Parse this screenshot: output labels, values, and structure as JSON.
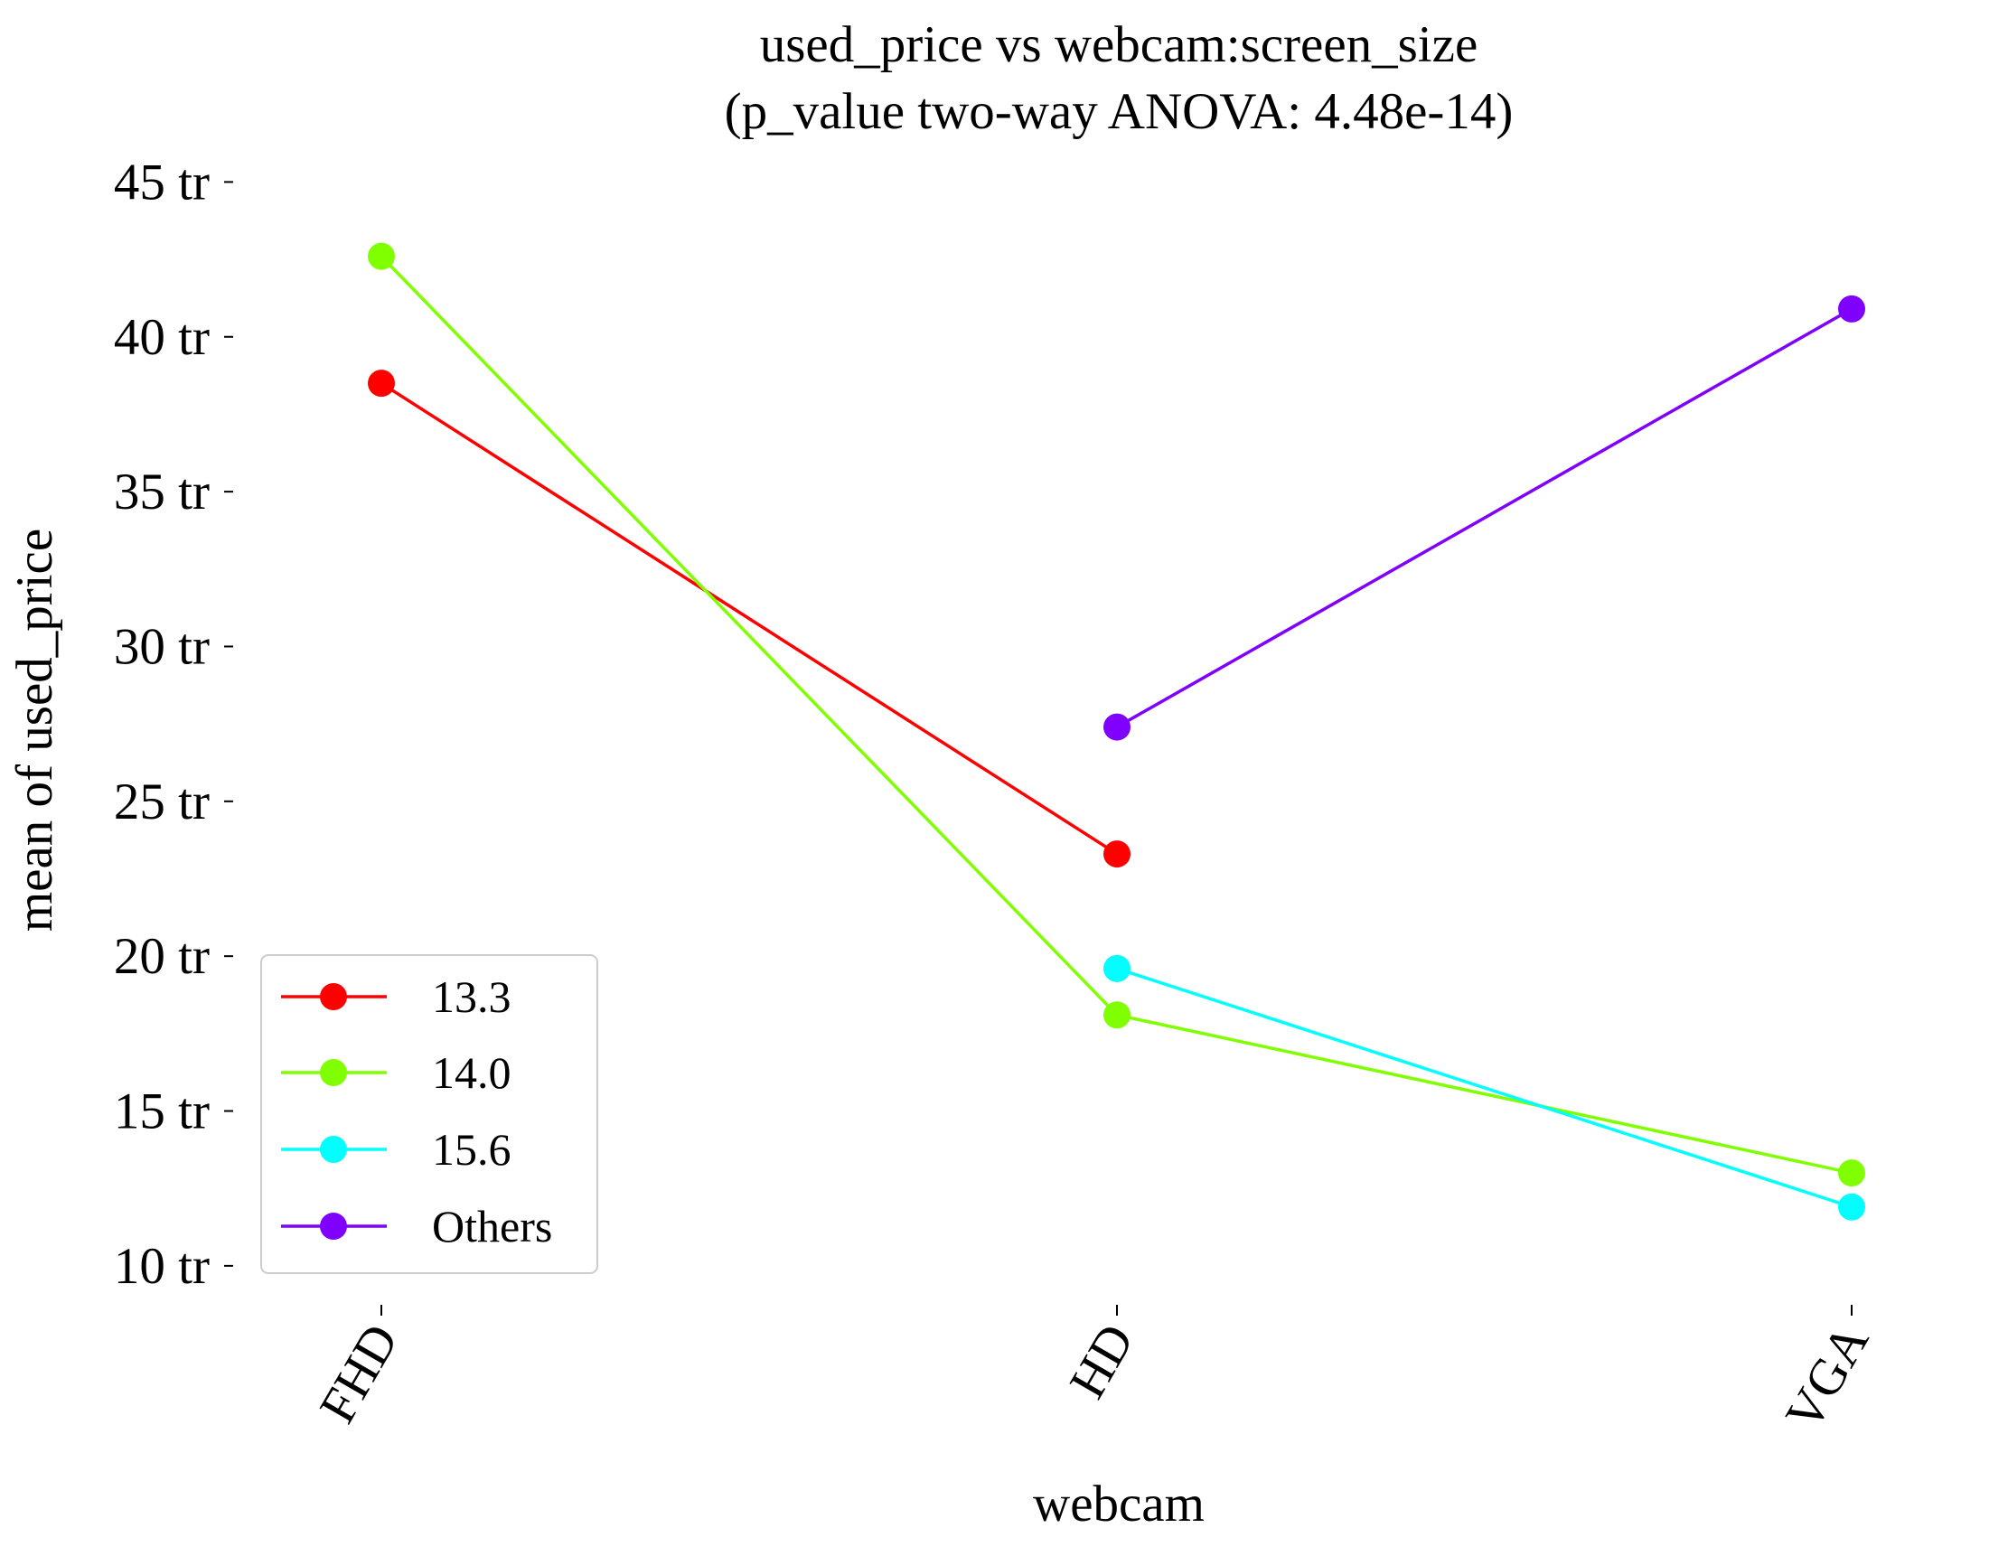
{
  "chart_data": {
    "type": "line",
    "title": "used_price vs webcam:screen_size",
    "subtitle": "(p_value two-way ANOVA: 4.48e-14)",
    "xlabel": "webcam",
    "ylabel": "mean of used_price",
    "categories": [
      "FHD",
      "HD",
      "VGA"
    ],
    "ylim": [
      8.8,
      46.5
    ],
    "yticks": [
      10,
      15,
      20,
      25,
      30,
      35,
      40,
      45
    ],
    "ytick_labels": [
      "10 tr",
      "15 tr",
      "20 tr",
      "25 tr",
      "30 tr",
      "35 tr",
      "40 tr",
      "45 tr"
    ],
    "grid": false,
    "legend_position": "lower-left",
    "series": [
      {
        "name": "13.3",
        "color": "#ff0000",
        "values": [
          38.5,
          23.3,
          null
        ]
      },
      {
        "name": "14.0",
        "color": "#80ff00",
        "values": [
          42.6,
          18.1,
          13.0
        ]
      },
      {
        "name": "15.6",
        "color": "#00ffff",
        "values": [
          null,
          19.6,
          11.9
        ]
      },
      {
        "name": "Others",
        "color": "#8000ff",
        "values": [
          null,
          27.4,
          40.9
        ]
      }
    ]
  }
}
